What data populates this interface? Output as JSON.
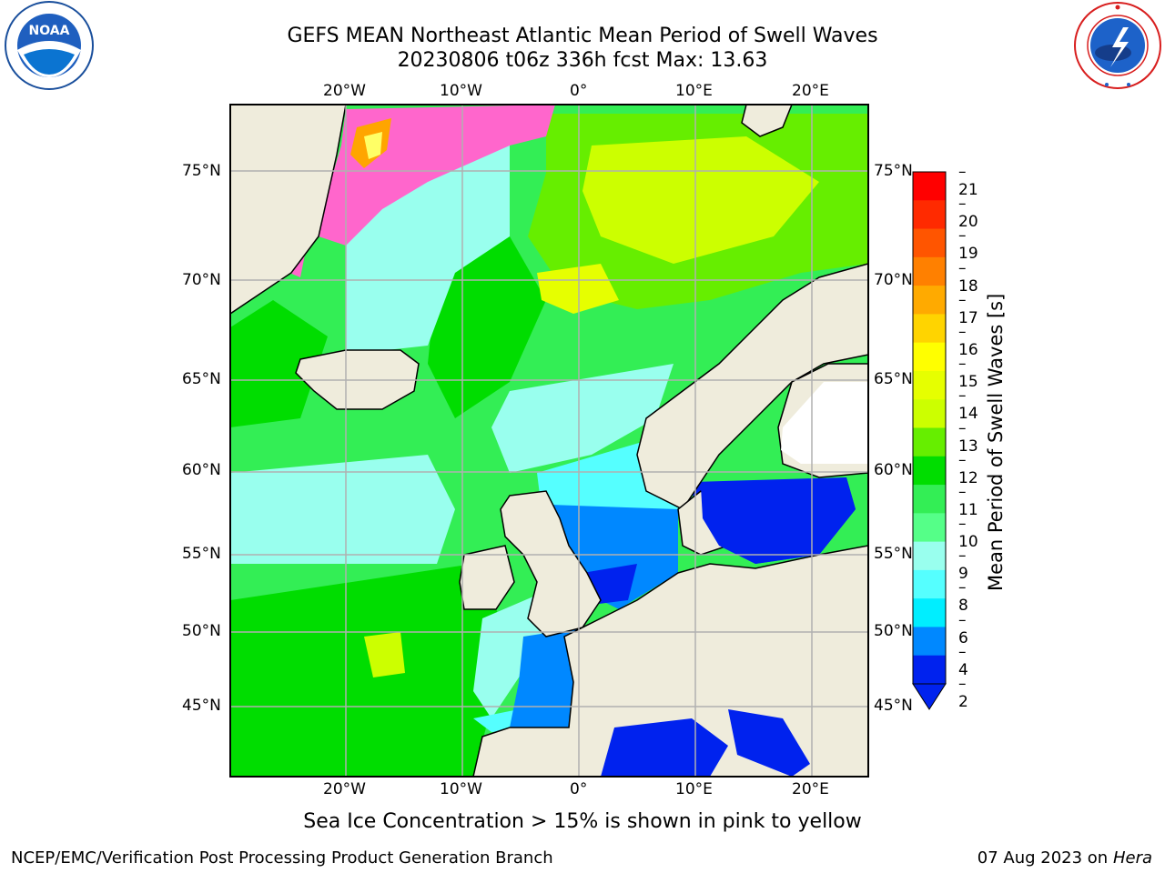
{
  "header": {
    "title_line1": "GEFS MEAN Northeast Atlantic Mean Period of Swell Waves",
    "title_line2": "20230806 t06z 336h fcst   Max: 13.63"
  },
  "logos": {
    "left": {
      "icon": "noaa-logo",
      "text": "NOAA",
      "ring_text": "NATIONAL OCEANIC AND ATMOSPHERIC ADMINISTRATION · U.S. DEPARTMENT OF COMMERCE"
    },
    "right": {
      "icon": "nws-logo",
      "ring_text": "NATIONAL WEATHER SERVICE"
    }
  },
  "map": {
    "lon_ticks_top": [
      "20°W",
      "10°W",
      "0°",
      "10°E",
      "20°E"
    ],
    "lon_ticks_bottom": [
      "20°W",
      "10°W",
      "0°",
      "10°E",
      "20°E"
    ],
    "lat_ticks_left": [
      "75°N",
      "70°N",
      "65°N",
      "60°N",
      "55°N",
      "50°N",
      "45°N"
    ],
    "lat_ticks_right": [
      "75°N",
      "70°N",
      "65°N",
      "60°N",
      "55°N",
      "50°N",
      "45°N"
    ],
    "land_color": "#efecdc",
    "ice_colors": [
      "#ff66cc",
      "#ffa500",
      "#ffff66"
    ]
  },
  "colorbar": {
    "label": "Mean Period of Swell Waves [s]",
    "levels": [
      "21",
      "20",
      "19",
      "18",
      "17",
      "16",
      "15",
      "14",
      "13",
      "12",
      "11",
      "10",
      "9",
      "8",
      "6",
      "4",
      "2"
    ],
    "colors": [
      "#ff0000",
      "#ff2a00",
      "#ff5500",
      "#ff8000",
      "#ffaa00",
      "#ffd400",
      "#ffff00",
      "#e6ff00",
      "#ccff00",
      "#66ee00",
      "#00dd00",
      "#33ee55",
      "#55ff88",
      "#99ffee",
      "#55ffff",
      "#00eeff",
      "#0088ff",
      "#0022ee"
    ],
    "extend": "min"
  },
  "footer": {
    "caption": "Sea Ice Concentration > 15% is shown in pink to yellow",
    "credit": "NCEP/EMC/Verification Post Processing Product Generation Branch",
    "date": "07 Aug 2023 on",
    "machine": "Hera"
  }
}
